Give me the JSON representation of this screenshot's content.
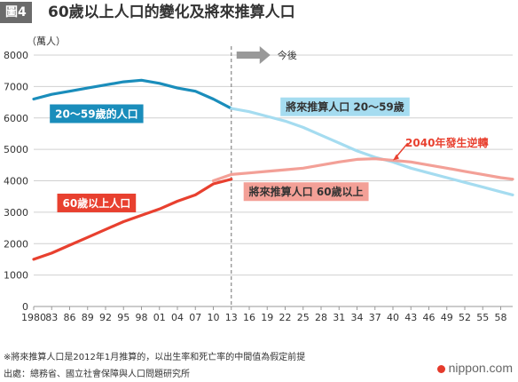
{
  "figure_label": "圖4",
  "title": "60歲以上人口的變化及將來推算人口",
  "footer": {
    "note": "※將來推算人口是2012年1月推算的，以出生率和死亡率的中間值為假定前提",
    "source": "出處：總務省、國立社會保障與人口問題研究所"
  },
  "brand": "nippon.com",
  "colors": {
    "actual_20_59": "#1a8dbb",
    "projected_20_59": "#a5dcf0",
    "actual_60plus": "#e8402f",
    "projected_60plus": "#f3a097",
    "grid": "#d0d0d0",
    "divider": "#888888"
  },
  "chart_data": {
    "type": "line",
    "ylabel": "（萬人）",
    "ylim": [
      0,
      8000
    ],
    "yticks": [
      0,
      1000,
      2000,
      3000,
      4000,
      5000,
      6000,
      7000,
      8000
    ],
    "xlim": [
      1980,
      2060
    ],
    "xticks": [
      1980,
      1983,
      1986,
      1989,
      1992,
      1995,
      1998,
      2001,
      2004,
      2007,
      2010,
      2013,
      2016,
      2019,
      2022,
      2025,
      2028,
      2031,
      2034,
      2037,
      2040,
      2043,
      2046,
      2049,
      2052,
      2055,
      2058
    ],
    "xtick_labels": [
      "1980",
      "83",
      "86",
      "89",
      "92",
      "95",
      "98",
      "01",
      "04",
      "07",
      "10",
      "13",
      "16",
      "19",
      "22",
      "25",
      "28",
      "31",
      "34",
      "37",
      "40",
      "43",
      "46",
      "49",
      "52",
      "55",
      "58"
    ],
    "grid": true,
    "divider_year": 2013,
    "arrow_label": "今後",
    "series": [
      {
        "key": "actual_20_59",
        "name": "20〜59歲的人口",
        "x": [
          1980,
          1983,
          1986,
          1989,
          1992,
          1995,
          1998,
          2001,
          2004,
          2007,
          2010,
          2013
        ],
        "values": [
          6600,
          6750,
          6850,
          6950,
          7050,
          7150,
          7200,
          7100,
          6950,
          6850,
          6600,
          6300
        ]
      },
      {
        "key": "projected_20_59",
        "name": "將來推算人口 20〜59歲",
        "x": [
          2013,
          2016,
          2019,
          2022,
          2025,
          2028,
          2031,
          2034,
          2037,
          2040,
          2043,
          2046,
          2049,
          2052,
          2055,
          2058,
          2060
        ],
        "values": [
          6300,
          6200,
          6050,
          5900,
          5700,
          5450,
          5200,
          4950,
          4750,
          4600,
          4400,
          4250,
          4100,
          3950,
          3800,
          3650,
          3550
        ]
      },
      {
        "key": "actual_60plus",
        "name": "60歲以上人口",
        "x": [
          1980,
          1983,
          1986,
          1989,
          1992,
          1995,
          1998,
          2001,
          2004,
          2007,
          2010,
          2013
        ],
        "values": [
          1500,
          1700,
          1950,
          2200,
          2450,
          2700,
          2900,
          3100,
          3350,
          3550,
          3900,
          4050
        ]
      },
      {
        "key": "projected_60plus",
        "name": "將來推算人口 60歲以上",
        "x": [
          2010,
          2013,
          2016,
          2019,
          2022,
          2025,
          2028,
          2031,
          2034,
          2037,
          2040,
          2043,
          2046,
          2049,
          2052,
          2055,
          2058,
          2060
        ],
        "values": [
          4000,
          4200,
          4250,
          4300,
          4350,
          4400,
          4500,
          4600,
          4680,
          4700,
          4650,
          4600,
          4500,
          4400,
          4300,
          4200,
          4100,
          4050
        ]
      }
    ],
    "annotations": [
      {
        "text": "2040年發生逆轉",
        "x": 2040,
        "y": 4650
      }
    ]
  }
}
